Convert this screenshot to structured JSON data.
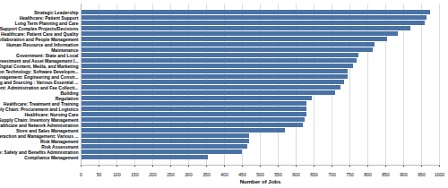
{
  "chart_data": {
    "type": "bar",
    "orientation": "horizontal",
    "categories": [
      "Strategic Leadership",
      "Healthcare: Patient Support",
      "Long Term Planning and Care",
      "Support Complex Projects/Decisions",
      "Healthcare: Patient Care and Quality",
      "Global Collaboration and People Management",
      "Human Resource and Information",
      "Maintenance",
      "Government: State and Local",
      "Finance: Investment and Asset Management I...",
      "Digital Content, Media, and Marketing",
      "Information Technology: Software Developm...",
      "Project Management: Engineering and Constr...",
      "Scheduling and Sourcing : Various Essential ...",
      "Government: Administration and Fee Collecti...",
      "Building",
      "Regulation",
      "Healthcare: Treatment and Training",
      "Supply Chain: Procurement and Logistics",
      "Healthcare: Nursing Care",
      "Supply Chain: Inventory Management",
      "Healthcare and Network Administration",
      "Store and Sales Management",
      "Client Interaction and Management: Various ...",
      "Risk Management",
      "Risk Assessment",
      "Healthcare: Safety and Benefits Administration",
      "Compliance Management"
    ],
    "values": [
      975,
      965,
      960,
      920,
      885,
      855,
      820,
      815,
      775,
      770,
      760,
      745,
      745,
      735,
      725,
      710,
      645,
      630,
      630,
      630,
      625,
      620,
      570,
      470,
      470,
      465,
      450,
      355
    ],
    "color": "#4a72a4",
    "x_label": "Number of Jobs",
    "xlim": [
      0,
      1000
    ],
    "xticks": [
      0,
      50,
      100,
      150,
      200,
      250,
      300,
      350,
      400,
      450,
      500,
      550,
      600,
      650,
      700,
      750,
      800,
      850,
      900,
      950,
      1000
    ],
    "grid": true
  }
}
